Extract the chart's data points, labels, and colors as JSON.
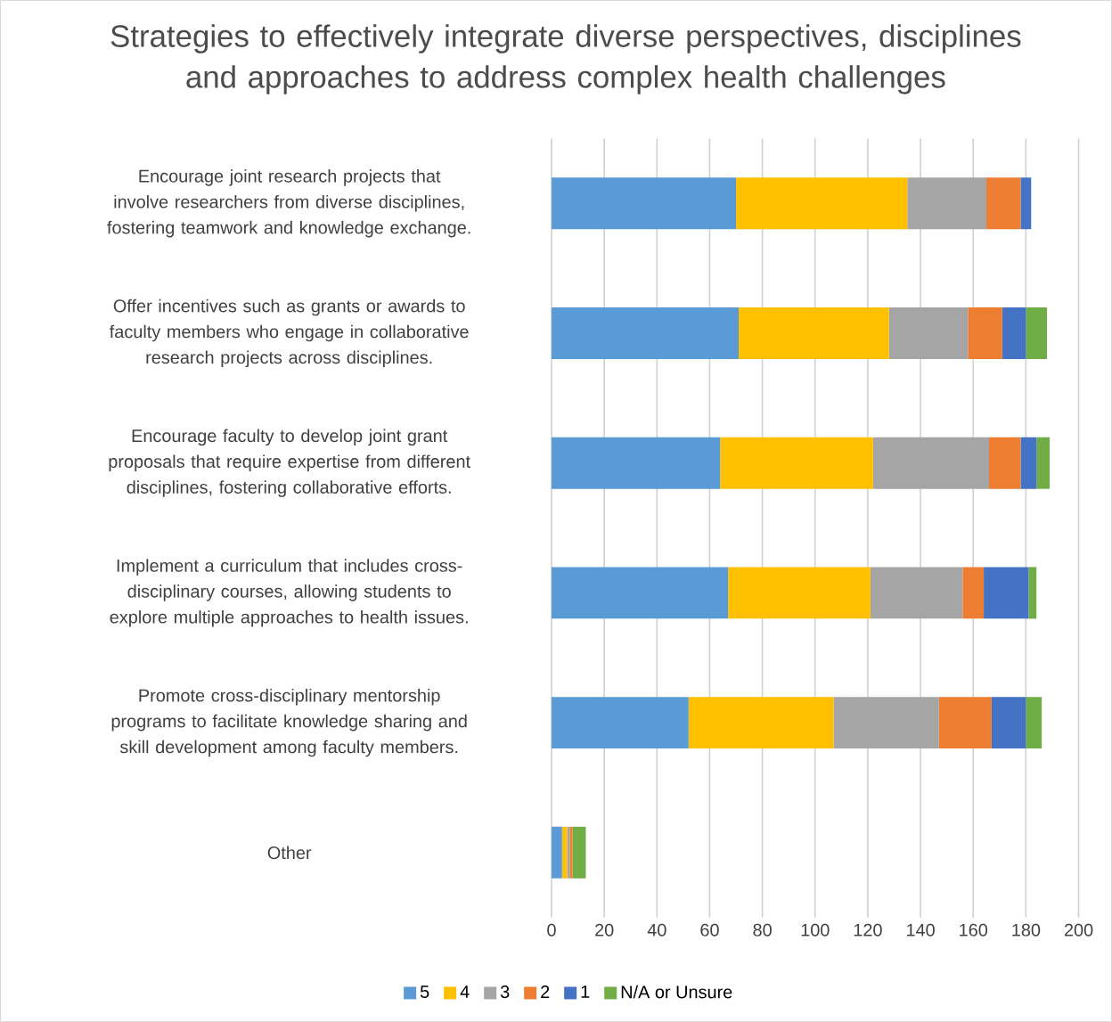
{
  "chart_data": {
    "type": "bar",
    "orientation": "horizontal",
    "stacked": true,
    "title": "Strategies to effectively integrate diverse perspectives, disciplines and approaches to address complex health challenges",
    "categories": [
      "Encourage joint research projects that involve researchers from diverse disciplines, fostering teamwork and knowledge exchange.",
      "Offer incentives such as grants or awards to faculty members who engage in collaborative research projects across disciplines.",
      "Encourage faculty to develop joint grant proposals that require expertise from different disciplines, fostering collaborative efforts.",
      "Implement a curriculum that includes cross-disciplinary courses, allowing students to explore multiple approaches to health issues.",
      "Promote cross-disciplinary mentorship programs to facilitate knowledge sharing and skill development among faculty members.",
      "Other"
    ],
    "series": [
      {
        "name": "5",
        "color": "#5b9bd5",
        "values": [
          70,
          71,
          64,
          67,
          52,
          4
        ]
      },
      {
        "name": "4",
        "color": "#ffc000",
        "values": [
          65,
          57,
          58,
          54,
          55,
          2
        ]
      },
      {
        "name": "3",
        "color": "#a5a5a5",
        "values": [
          30,
          30,
          44,
          35,
          40,
          1
        ]
      },
      {
        "name": "2",
        "color": "#ed7d31",
        "values": [
          13,
          13,
          12,
          8,
          20,
          1
        ]
      },
      {
        "name": "1",
        "color": "#4472c4",
        "values": [
          4,
          9,
          6,
          17,
          13,
          0
        ]
      },
      {
        "name": "N/A or Unsure",
        "color": "#70ad47",
        "values": [
          0,
          8,
          5,
          3,
          6,
          5
        ]
      }
    ],
    "xlim": [
      0,
      200
    ],
    "xticks": [
      0,
      20,
      40,
      60,
      80,
      100,
      120,
      140,
      160,
      180,
      200
    ],
    "grid": "x",
    "legend": "bottom"
  }
}
